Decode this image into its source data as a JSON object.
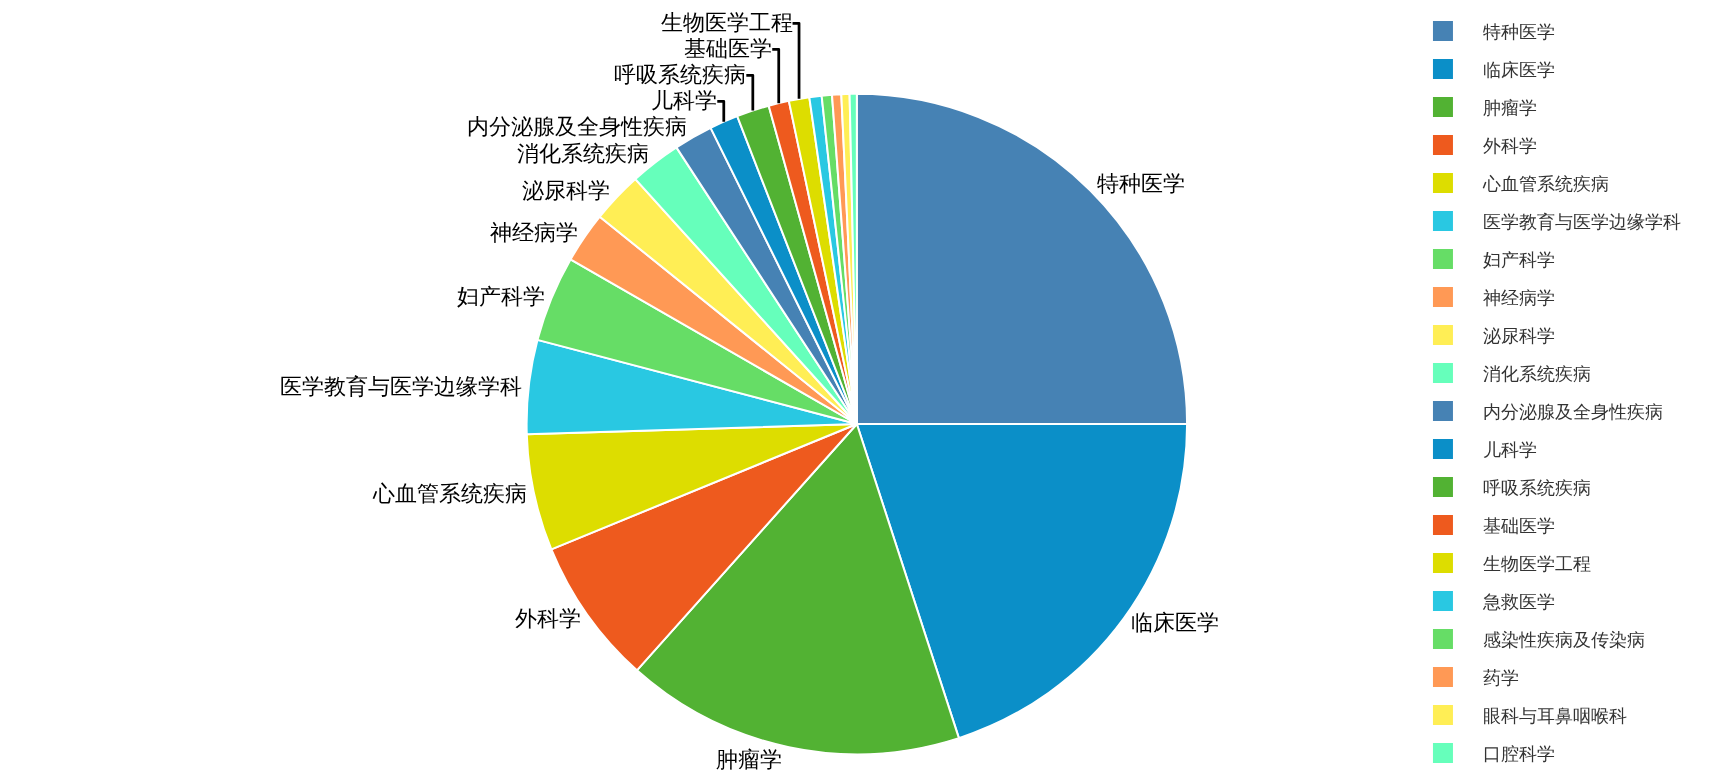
{
  "chart_data": {
    "type": "pie",
    "categories": [
      "特种医学",
      "临床医学",
      "肿瘤学",
      "外科学",
      "心血管系统疾病",
      "医学教育与医学边缘学科",
      "妇产科学",
      "神经病学",
      "泌尿科学",
      "消化系统疾病",
      "内分泌腺及全身性疾病",
      "儿科学",
      "呼吸系统疾病",
      "基础医学",
      "生物医学工程",
      "急救医学",
      "感染性疾病及传染病",
      "药学",
      "眼科与耳鼻咽喉科",
      "口腔科学"
    ],
    "values": [
      25,
      20,
      16.6,
      7.2,
      5.7,
      4.6,
      4.2,
      2.5,
      2.5,
      2.5,
      1.9,
      1.4,
      1.6,
      1.0,
      1.0,
      0.6,
      0.5,
      0.45,
      0.4,
      0.35
    ],
    "colors": [
      "#4682b4",
      "#0b8fc8",
      "#52b233",
      "#ee5a1e",
      "#dddd00",
      "#29c8e2",
      "#66dd66",
      "#ff9955",
      "#ffee55",
      "#66ffbb",
      "#4682b4",
      "#0b8fc8",
      "#52b233",
      "#ee5a1e",
      "#dddd00",
      "#29c8e2",
      "#66dd66",
      "#ff9955",
      "#ffee55",
      "#66ffbb"
    ],
    "legend": "right"
  }
}
